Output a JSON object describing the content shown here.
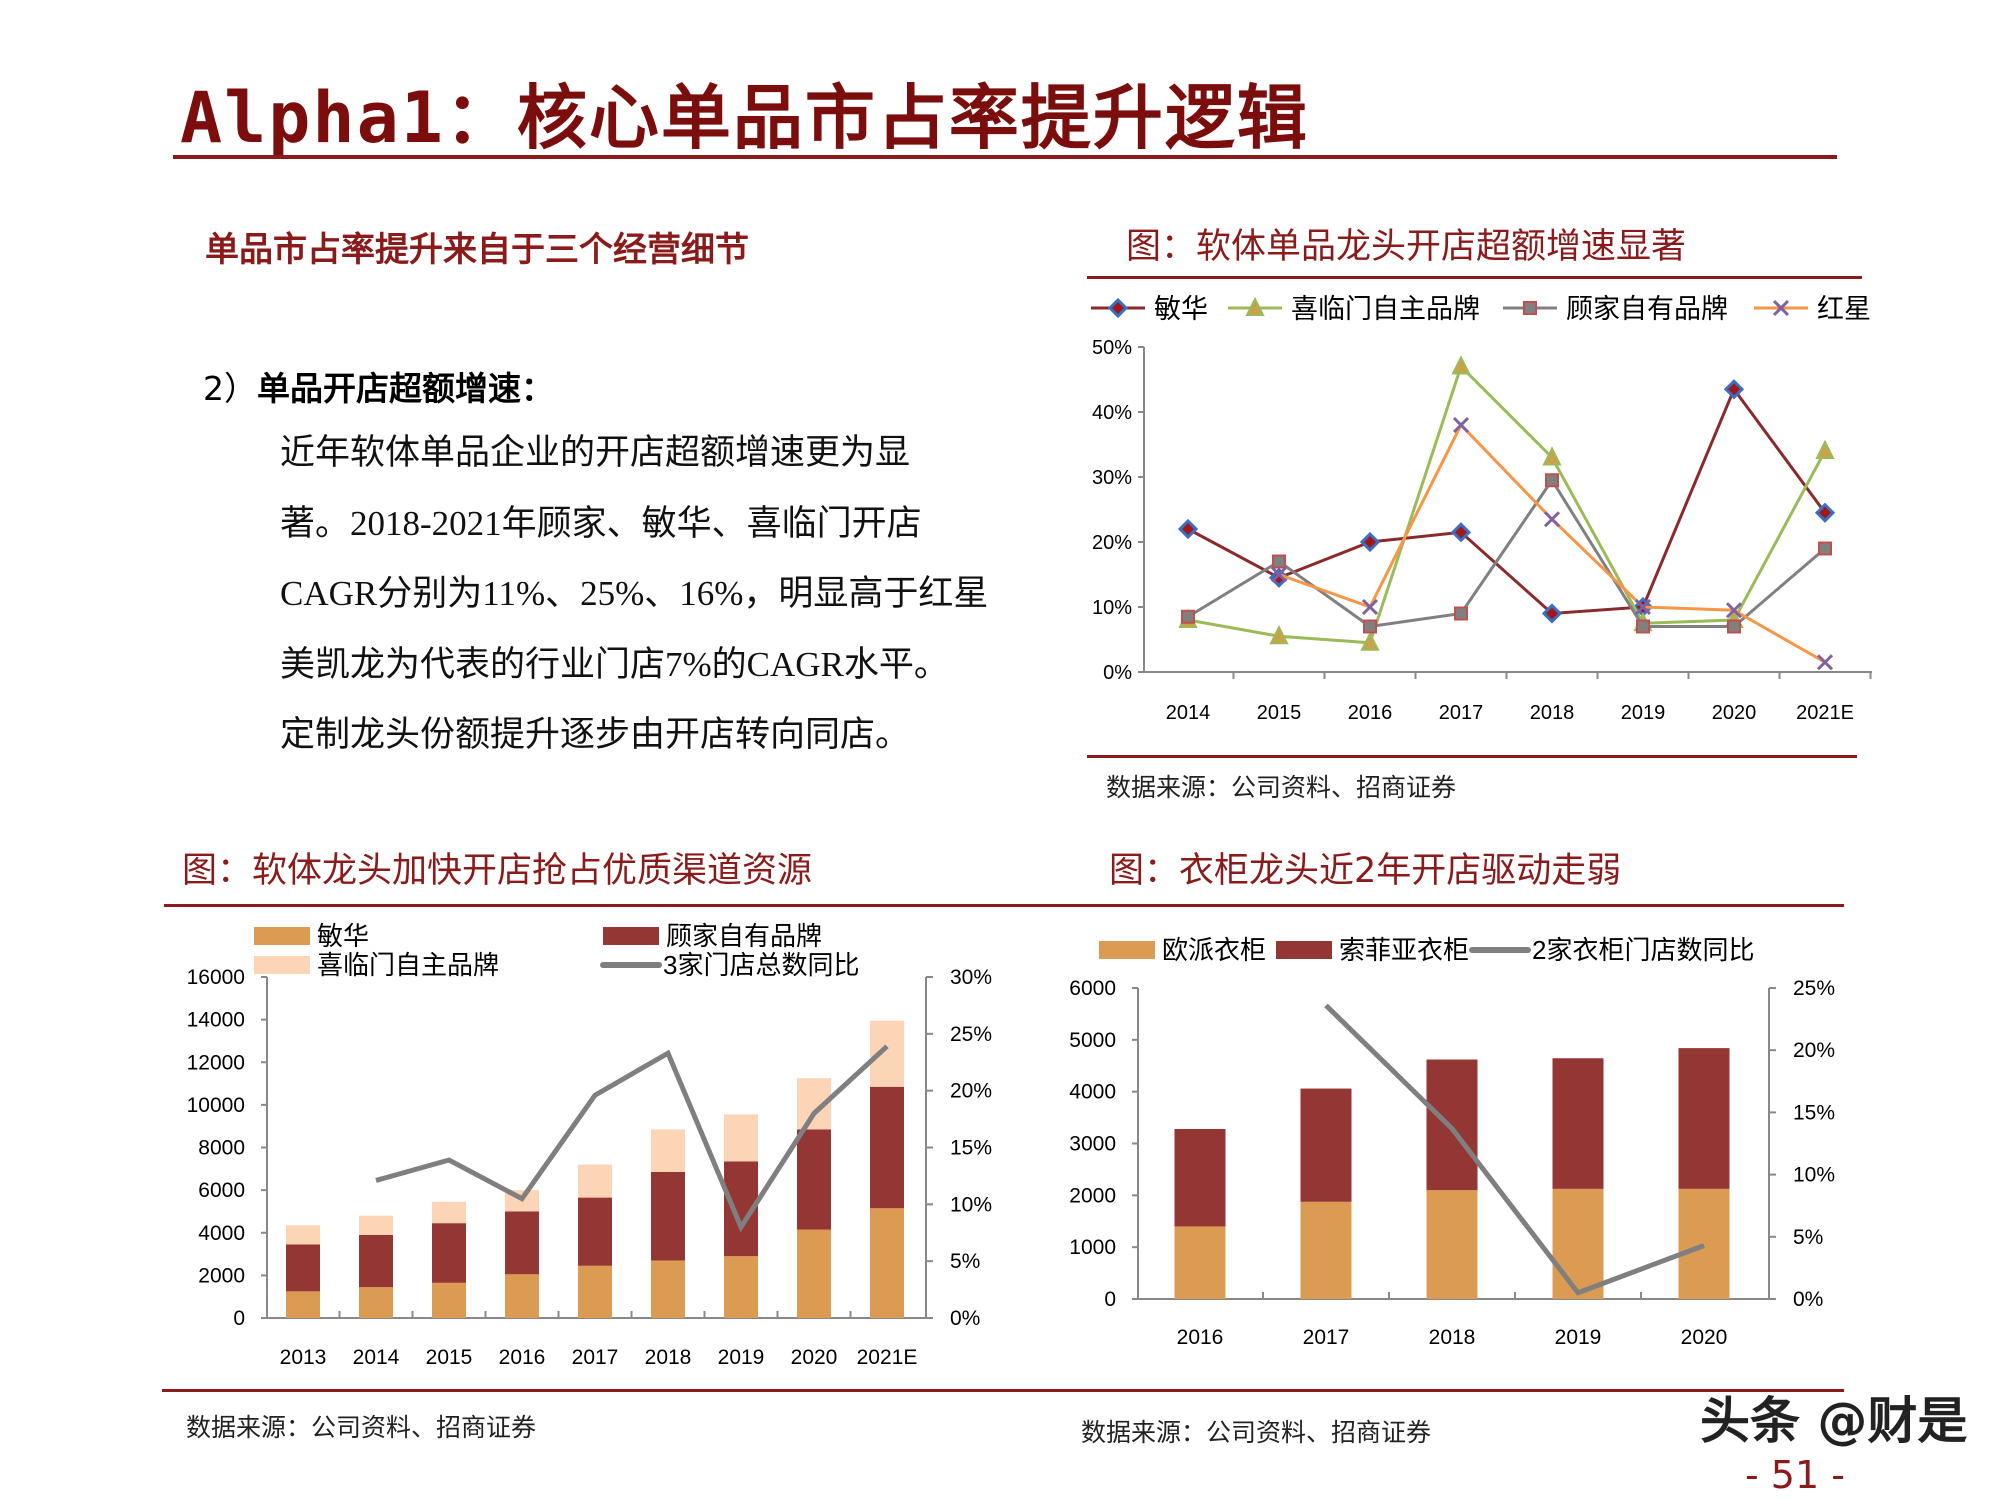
{
  "title": "Alpha1：核心单品市占率提升逻辑",
  "subtitle": "单品市占率提升来自于三个经营细节",
  "section": {
    "number": "2）",
    "heading": "单品开店超额增速："
  },
  "paragraph_lines": [
    "近年软体单品企业的开店超额增速更为显",
    "著。2018-2021年顾家、敏华、喜临门开店",
    "CAGR分别为11%、25%、16%，明显高于红星",
    "美凯龙为代表的行业门店7%的CAGR水平。",
    "定制龙头份额提升逐步由开店转向同店。"
  ],
  "watermark": "头条 @财是",
  "page_number": "- 51 -",
  "chart_data": [
    {
      "type": "line",
      "title": "图：软体单品龙头开店超额增速显著",
      "source": "数据来源：公司资料、招商证券",
      "categories": [
        "2014",
        "2015",
        "2016",
        "2017",
        "2018",
        "2019",
        "2020",
        "2021E"
      ],
      "y_ticks": [
        "0%",
        "10%",
        "20%",
        "30%",
        "40%",
        "50%"
      ],
      "ylim": [
        0,
        50
      ],
      "unit": "%",
      "legend_position": "top",
      "series": [
        {
          "name": "敏华",
          "color": "#8B2A2A",
          "marker": "diamond",
          "marker_color": "#3A6FC4",
          "values": [
            22,
            14.5,
            20,
            21.5,
            9,
            10,
            43.5,
            24.5
          ]
        },
        {
          "name": "喜临门自主品牌",
          "color": "#9BBB59",
          "marker": "triangle",
          "marker_color": "#9BBB59",
          "values": [
            8,
            5.5,
            4.5,
            47,
            33,
            7.5,
            8,
            34
          ]
        },
        {
          "name": "顾家自有品牌",
          "color": "#808080",
          "marker": "square",
          "marker_color": "#C0504D",
          "values": [
            8.5,
            17,
            7,
            9,
            29.5,
            7,
            7,
            19
          ]
        },
        {
          "name": "红星",
          "color": "#F79646",
          "marker": "x",
          "marker_color": "#7F60A0",
          "values": [
            null,
            15,
            10,
            38,
            23.5,
            10,
            9.5,
            1.5
          ]
        }
      ]
    },
    {
      "type": "bar",
      "stacked": true,
      "title": "图：软体龙头加快开店抢占优质渠道资源",
      "source": "数据来源：公司资料、招商证券",
      "categories": [
        "2013",
        "2014",
        "2015",
        "2016",
        "2017",
        "2018",
        "2019",
        "2020",
        "2021E"
      ],
      "y_ticks": [
        "0",
        "2000",
        "4000",
        "6000",
        "8000",
        "10000",
        "12000",
        "14000",
        "16000"
      ],
      "ylim": [
        0,
        16000
      ],
      "y2_ticks": [
        "0%",
        "5%",
        "10%",
        "15%",
        "20%",
        "25%",
        "30%"
      ],
      "y2lim": [
        0,
        30
      ],
      "series": [
        {
          "name": "敏华",
          "color": "#DC9B52",
          "values": [
            1250,
            1450,
            1650,
            2050,
            2450,
            2700,
            2900,
            4150,
            5150
          ]
        },
        {
          "name": "顾家自有品牌",
          "color": "#943634",
          "values": [
            2200,
            2450,
            2800,
            2950,
            3200,
            4150,
            4450,
            4700,
            5700
          ]
        },
        {
          "name": "喜临门自主品牌",
          "color": "#FBD5B5",
          "values": [
            900,
            900,
            1000,
            1000,
            1550,
            2000,
            2200,
            2400,
            3100
          ]
        }
      ],
      "line": {
        "name": "3家门店总数同比",
        "color": "#7F7F7F",
        "axis": "right",
        "values": [
          null,
          12.1,
          13.9,
          10.5,
          19.6,
          23.3,
          8.0,
          18.0,
          23.9
        ]
      }
    },
    {
      "type": "bar",
      "stacked": true,
      "title": "图：衣柜龙头近2年开店驱动走弱",
      "source": "数据来源：公司资料、招商证券",
      "categories": [
        "2016",
        "2017",
        "2018",
        "2019",
        "2020"
      ],
      "y_ticks": [
        "0",
        "1000",
        "2000",
        "3000",
        "4000",
        "5000",
        "6000"
      ],
      "ylim": [
        0,
        6000
      ],
      "y2_ticks": [
        "0%",
        "5%",
        "10%",
        "15%",
        "20%",
        "25%"
      ],
      "y2lim": [
        0,
        25
      ],
      "series": [
        {
          "name": "欧派衣柜",
          "color": "#DC9B52",
          "values": [
            1400,
            1875,
            2100,
            2125,
            2125
          ]
        },
        {
          "name": "索菲亚衣柜",
          "color": "#943634",
          "values": [
            1880,
            2185,
            2520,
            2520,
            2715
          ]
        }
      ],
      "line": {
        "name": "2家衣柜门店数同比",
        "color": "#7F7F7F",
        "axis": "right",
        "values": [
          null,
          23.6,
          13.7,
          0.5,
          4.3
        ]
      }
    }
  ]
}
